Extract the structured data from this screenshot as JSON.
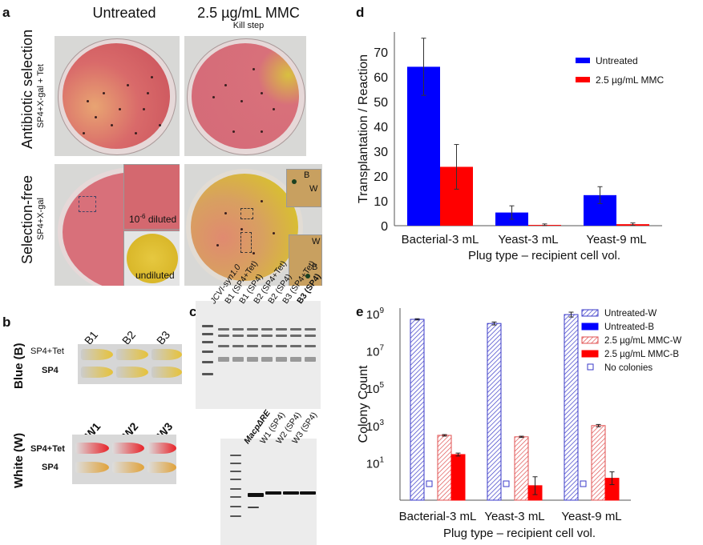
{
  "panel_a": {
    "label": "a",
    "col_untreated": "Untreated",
    "col_mmc": "2.5 µg/mL MMC",
    "col_mmc_sub": "Kill step",
    "row1_title": "Antibiotic  selection",
    "row1_sub": "SP4+X-gal + Tet",
    "row2_title": "Selection-free",
    "row2_sub": "SP4+X-gal",
    "inset_diluted": "10",
    "inset_diluted_exp": "-6",
    "inset_diluted_suffix": " diluted",
    "inset_undiluted": "undiluted",
    "inset_B": "B",
    "inset_W": "W"
  },
  "panel_b": {
    "label": "b",
    "blue_row_label": "Blue (B)",
    "white_row_label": "White (W)",
    "media_tet": "SP4+Tet",
    "media_sp4": "SP4",
    "blue_clones": [
      "B1",
      "B2",
      "B3"
    ],
    "white_clones": [
      "W1",
      "W2",
      "W3"
    ],
    "colors": {
      "yellow": "#e6c23a",
      "red": "#e8242a",
      "orange": "#e0a23a"
    }
  },
  "panel_c": {
    "label": "c",
    "top_lanes": [
      "JCVI-syn1.0",
      "B1 (SP4+Tet)",
      "B1 (SP4)",
      "B2 (SP4+Tet)",
      "B2 (SP4)",
      "B3 (SP4+Tet)",
      "B3 (SP4)"
    ],
    "bottom_lanes": [
      "MacpΔRE",
      "W1 (SP4)",
      "W2 (SP4)",
      "W3 (SP4)"
    ]
  },
  "chart_data": [
    {
      "panel": "d",
      "type": "bar",
      "title": "",
      "xlabel": "Plug type – recipient cell vol.",
      "ylabel": "Transplantation / Reaction",
      "categories": [
        "Bacterial-3 mL",
        "Yeast-3 mL",
        "Yeast-9 mL"
      ],
      "ylim": [
        0,
        78
      ],
      "yticks": [
        0,
        10,
        20,
        30,
        40,
        50,
        60,
        70
      ],
      "grid": false,
      "legend": "top-right",
      "series": [
        {
          "name": "Untreated",
          "color": "#0000ff",
          "values": [
            64,
            5.3,
            12.3
          ],
          "errors": [
            11.5,
            2.7,
            3.4
          ]
        },
        {
          "name": "2.5 µg/mL MMC",
          "color": "#ff0000",
          "values": [
            23.7,
            0.3,
            0.6
          ],
          "errors": [
            9.0,
            0.4,
            0.5
          ]
        }
      ]
    },
    {
      "panel": "e",
      "type": "bar",
      "yscale": "log",
      "title": "",
      "xlabel": "Plug type – recipient cell vol.",
      "ylabel": "Colony Count",
      "categories": [
        "Bacterial-3 mL",
        "Yeast-3 mL",
        "Yeast-9 mL"
      ],
      "ylim": [
        0.1,
        2000000000
      ],
      "yticks": [
        10,
        1000,
        100000,
        10000000,
        1000000000
      ],
      "ytick_labels": [
        {
          "base": "10",
          "exp": "1"
        },
        {
          "base": "10",
          "exp": "3"
        },
        {
          "base": "10",
          "exp": "5"
        },
        {
          "base": "10",
          "exp": "7"
        },
        {
          "base": "10",
          "exp": "9"
        }
      ],
      "grid": false,
      "legend": "top-right",
      "series": [
        {
          "name": "Untreated-W",
          "color": "#3a3ac8",
          "pattern": "hatch",
          "values": [
            500000000,
            300000000,
            900000000
          ],
          "errors_factor": [
            1.08,
            1.2,
            1.35
          ]
        },
        {
          "name": "Untreated-B",
          "color": "#0000ff",
          "pattern": "solid",
          "values": [
            null,
            null,
            null
          ],
          "no_colonies": [
            true,
            true,
            true
          ]
        },
        {
          "name": "2.5 µg/mL MMC-W",
          "color": "#e05050",
          "pattern": "hatch",
          "values": [
            300,
            250,
            1000
          ],
          "errors_factor": [
            1.1,
            1.08,
            1.15
          ]
        },
        {
          "name": "2.5 µg/mL MMC-B",
          "color": "#ff0000",
          "pattern": "solid",
          "values": [
            28,
            0.6,
            1.5
          ],
          "errors_factor": [
            1.2,
            3.0,
            2.2
          ]
        }
      ],
      "legend_extra": {
        "name": "No colonies",
        "marker": "open-square",
        "color": "#3a3ac8"
      }
    }
  ]
}
